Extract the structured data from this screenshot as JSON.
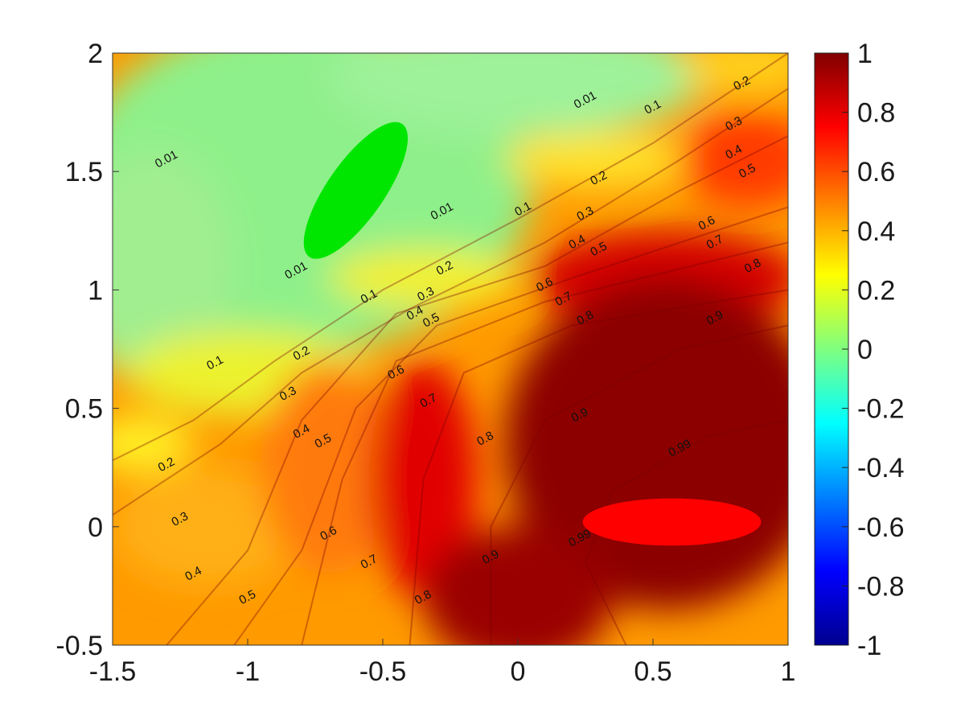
{
  "chart_data": {
    "type": "heatmap",
    "subtype": "filled-contour with contour labels and colorbar",
    "title": "",
    "xlabel": "",
    "ylabel": "",
    "xlim": [
      -1.5,
      1
    ],
    "ylim": [
      -0.5,
      2
    ],
    "x_ticks": [
      "-1.5",
      "-1",
      "-0.5",
      "0",
      "0.5",
      "1"
    ],
    "y_ticks": [
      "-0.5",
      "0",
      "0.5",
      "1",
      "1.5",
      "2"
    ],
    "grid": false,
    "colormap": "jet",
    "color_range": [
      -1,
      1
    ],
    "colorbar": {
      "position": "right",
      "ticks": [
        "1",
        "0.8",
        "0.6",
        "0.4",
        "0.2",
        "0",
        "-0.2",
        "-0.4",
        "-0.6",
        "-0.8",
        "-1"
      ]
    },
    "contour_levels": [
      0.01,
      0.1,
      0.2,
      0.3,
      0.4,
      0.5,
      0.6,
      0.7,
      0.8,
      0.9,
      0.99
    ],
    "regions": [
      {
        "shape": "ellipse",
        "center": [
          -0.6,
          1.42
        ],
        "semi_axes": [
          0.3,
          0.12
        ],
        "angle_deg": 55,
        "value": 0,
        "color": "#00e600"
      },
      {
        "shape": "ellipse",
        "center": [
          0.57,
          0.02
        ],
        "semi_axes": [
          0.33,
          0.1
        ],
        "angle_deg": 0,
        "value": 0.8,
        "color": "#ff0000"
      }
    ],
    "contour_labels": [
      {
        "text": "0.01",
        "x": 0.25,
        "y": 1.8
      },
      {
        "text": "0.01",
        "x": -1.3,
        "y": 1.55
      },
      {
        "text": "0.01",
        "x": -0.28,
        "y": 1.33
      },
      {
        "text": "0.01",
        "x": -0.82,
        "y": 1.08
      },
      {
        "text": "0.1",
        "x": 0.5,
        "y": 1.77
      },
      {
        "text": "0.1",
        "x": 0.02,
        "y": 1.34
      },
      {
        "text": "0.1",
        "x": -0.55,
        "y": 0.97
      },
      {
        "text": "0.1",
        "x": -1.12,
        "y": 0.69
      },
      {
        "text": "0.2",
        "x": 0.83,
        "y": 1.87
      },
      {
        "text": "0.2",
        "x": 0.3,
        "y": 1.47
      },
      {
        "text": "0.2",
        "x": -0.27,
        "y": 1.09
      },
      {
        "text": "0.2",
        "x": -0.8,
        "y": 0.73
      },
      {
        "text": "0.2",
        "x": -1.3,
        "y": 0.26
      },
      {
        "text": "0.3",
        "x": 0.8,
        "y": 1.7
      },
      {
        "text": "0.3",
        "x": 0.25,
        "y": 1.32
      },
      {
        "text": "0.3",
        "x": -0.34,
        "y": 0.98
      },
      {
        "text": "0.3",
        "x": -0.85,
        "y": 0.56
      },
      {
        "text": "0.3",
        "x": -1.25,
        "y": 0.03
      },
      {
        "text": "0.4",
        "x": 0.8,
        "y": 1.58
      },
      {
        "text": "0.4",
        "x": 0.22,
        "y": 1.2
      },
      {
        "text": "0.4",
        "x": -0.38,
        "y": 0.9
      },
      {
        "text": "0.4",
        "x": -0.8,
        "y": 0.4
      },
      {
        "text": "0.4",
        "x": -1.2,
        "y": -0.2
      },
      {
        "text": "0.5",
        "x": 0.85,
        "y": 1.5
      },
      {
        "text": "0.5",
        "x": 0.3,
        "y": 1.17
      },
      {
        "text": "0.5",
        "x": -0.32,
        "y": 0.87
      },
      {
        "text": "0.5",
        "x": -0.72,
        "y": 0.36
      },
      {
        "text": "0.5",
        "x": -1.0,
        "y": -0.3
      },
      {
        "text": "0.6",
        "x": 0.7,
        "y": 1.28
      },
      {
        "text": "0.6",
        "x": 0.1,
        "y": 1.02
      },
      {
        "text": "0.6",
        "x": -0.45,
        "y": 0.65
      },
      {
        "text": "0.6",
        "x": -0.7,
        "y": -0.03
      },
      {
        "text": "0.7",
        "x": 0.73,
        "y": 1.2
      },
      {
        "text": "0.7",
        "x": 0.17,
        "y": 0.96
      },
      {
        "text": "0.7",
        "x": -0.33,
        "y": 0.53
      },
      {
        "text": "0.7",
        "x": -0.55,
        "y": -0.15
      },
      {
        "text": "0.8",
        "x": 0.87,
        "y": 1.1
      },
      {
        "text": "0.8",
        "x": 0.25,
        "y": 0.88
      },
      {
        "text": "0.8",
        "x": -0.12,
        "y": 0.37
      },
      {
        "text": "0.8",
        "x": -0.35,
        "y": -0.3
      },
      {
        "text": "0.9",
        "x": 0.73,
        "y": 0.88
      },
      {
        "text": "0.9",
        "x": 0.23,
        "y": 0.47
      },
      {
        "text": "0.9",
        "x": -0.1,
        "y": -0.13
      },
      {
        "text": "0.99",
        "x": 0.6,
        "y": 0.33
      },
      {
        "text": "0.99",
        "x": 0.23,
        "y": -0.05
      }
    ]
  }
}
